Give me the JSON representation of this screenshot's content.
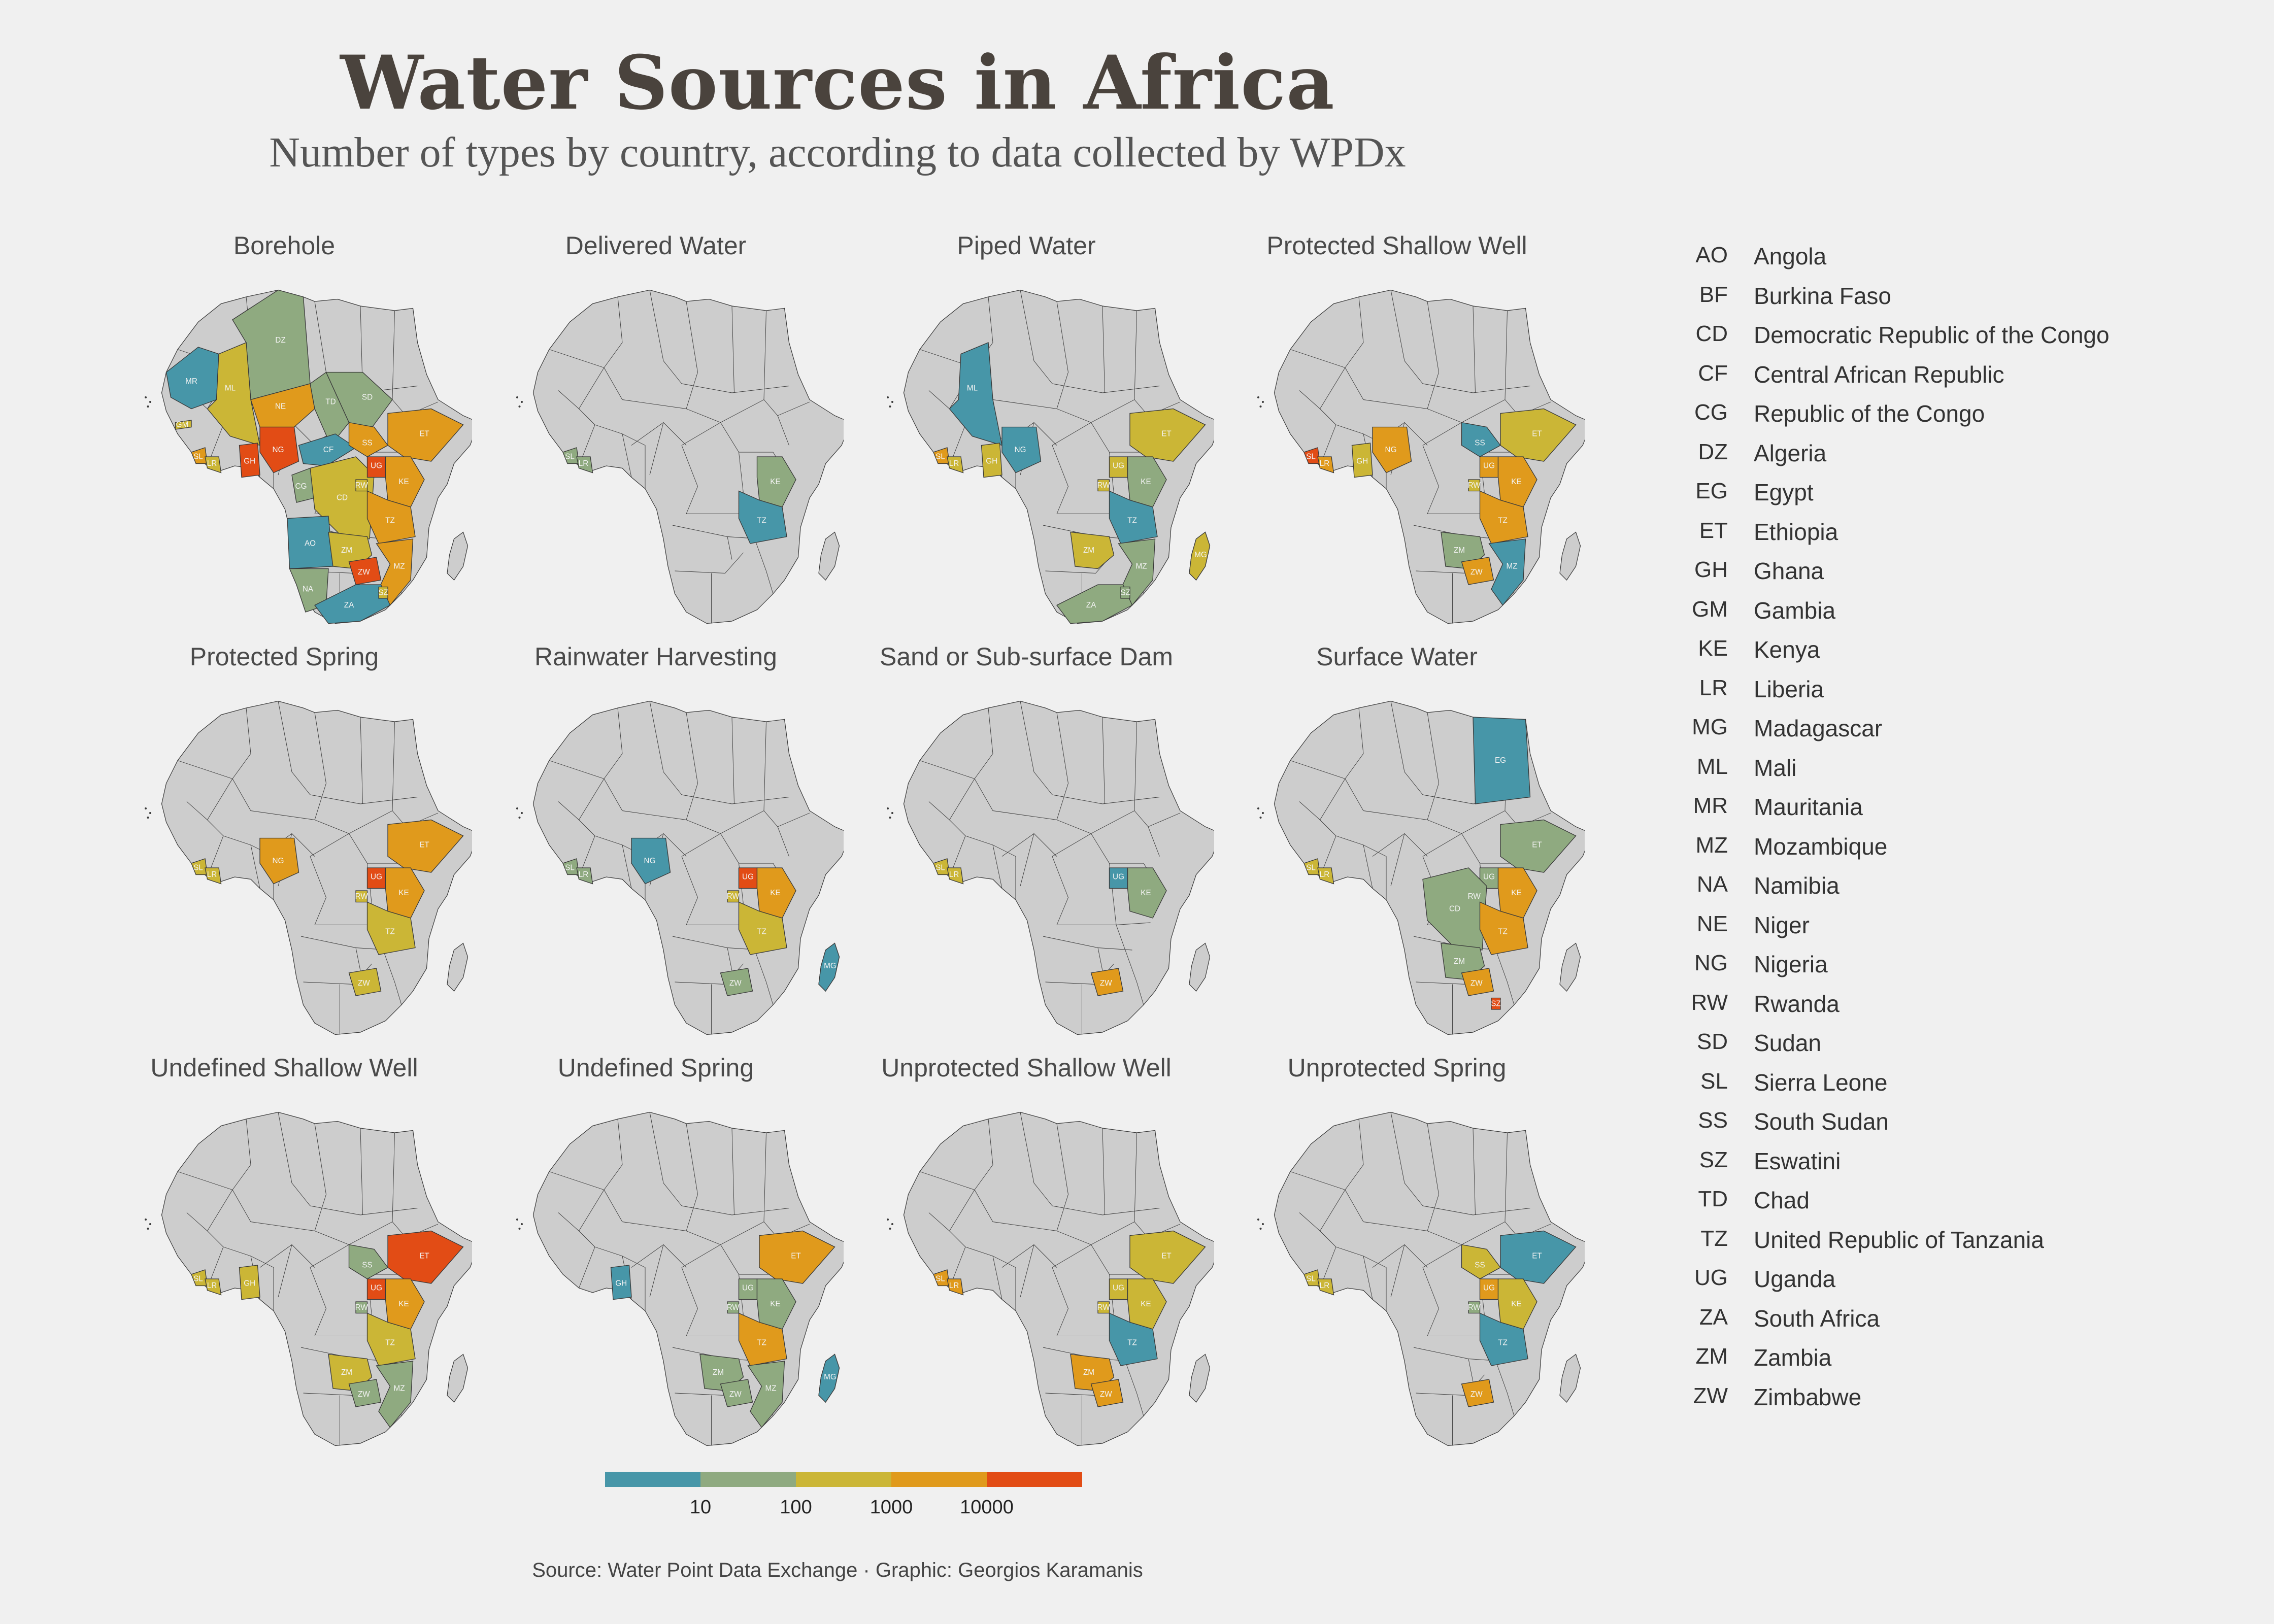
{
  "title": "Water Sources in Africa",
  "subtitle": "Number of types by country, according to data collected by WPDx",
  "caption": "Source: Water Point Data Exchange · Graphic: Georgios Karamanis",
  "colors": {
    "background": "#f0f0f0",
    "land": "#cdcdcd",
    "border": "#3a3a3a",
    "bin1": "#4796a8",
    "bin2": "#8faa80",
    "bin3": "#cbb636",
    "bin4": "#e09a1c",
    "bin5": "#e24c15"
  },
  "scale": {
    "type": "log",
    "bin_colors": [
      "#4796a8",
      "#8faa80",
      "#cbb636",
      "#e09a1c",
      "#e24c15"
    ],
    "tick_labels": [
      "10",
      "100",
      "1000",
      "10000"
    ]
  },
  "chart_data": {
    "type": "choropleth-small-multiples",
    "panels": [
      {
        "name": "Borehole",
        "countries": {
          "DZ": 2,
          "MR": 1,
          "ML": 3,
          "NE": 4,
          "TD": 2,
          "SD": 2,
          "NG": 5,
          "GH": 5,
          "SL": 4,
          "LR": 3,
          "GM": 3,
          "CF": 1,
          "CG": 2,
          "CD": 3,
          "SS": 4,
          "ET": 4,
          "UG": 5,
          "KE": 4,
          "RW": 3,
          "TZ": 4,
          "AO": 1,
          "ZM": 3,
          "MZ": 4,
          "ZW": 5,
          "NA": 2,
          "ZA": 1,
          "SZ": 3
        }
      },
      {
        "name": "Delivered Water",
        "countries": {
          "SL": 2,
          "LR": 2,
          "KE": 2,
          "TZ": 1
        }
      },
      {
        "name": "Piped Water",
        "countries": {
          "ML": 1,
          "NG": 1,
          "GH": 3,
          "SL": 4,
          "LR": 3,
          "ET": 3,
          "UG": 3,
          "RW": 3,
          "KE": 2,
          "TZ": 1,
          "ZM": 3,
          "MZ": 2,
          "MG": 3,
          "ZA": 2,
          "SZ": 2
        }
      },
      {
        "name": "Protected Shallow Well",
        "countries": {
          "SL": 5,
          "LR": 4,
          "GH": 3,
          "NG": 4,
          "SS": 1,
          "ET": 3,
          "UG": 4,
          "RW": 3,
          "KE": 4,
          "TZ": 4,
          "ZM": 2,
          "MZ": 1,
          "ZW": 4
        }
      },
      {
        "name": "Protected Spring",
        "countries": {
          "SL": 3,
          "LR": 3,
          "NG": 4,
          "ET": 4,
          "UG": 5,
          "RW": 3,
          "KE": 4,
          "TZ": 3,
          "ZW": 3
        }
      },
      {
        "name": "Rainwater Harvesting",
        "countries": {
          "SL": 2,
          "LR": 2,
          "NG": 1,
          "UG": 5,
          "RW": 3,
          "KE": 4,
          "TZ": 3,
          "ZW": 2,
          "MG": 1
        }
      },
      {
        "name": "Sand or Sub-surface Dam",
        "countries": {
          "SL": 3,
          "LR": 3,
          "UG": 1,
          "KE": 2,
          "ZW": 4
        }
      },
      {
        "name": "Surface Water",
        "countries": {
          "SL": 3,
          "LR": 3,
          "EG": 1,
          "ET": 2,
          "UG": 2,
          "RW": 2,
          "KE": 4,
          "CD": 2,
          "TZ": 4,
          "ZM": 2,
          "ZW": 4,
          "SZ": 5
        }
      },
      {
        "name": "Undefined Shallow Well",
        "countries": {
          "SL": 3,
          "LR": 3,
          "GH": 3,
          "SS": 2,
          "ET": 5,
          "UG": 5,
          "RW": 2,
          "KE": 4,
          "TZ": 3,
          "ZM": 3,
          "MZ": 2,
          "ZW": 2
        }
      },
      {
        "name": "Undefined Spring",
        "countries": {
          "GH": 1,
          "ET": 4,
          "UG": 2,
          "RW": 2,
          "KE": 2,
          "TZ": 4,
          "ZM": 2,
          "MZ": 2,
          "ZW": 2,
          "MG": 1
        }
      },
      {
        "name": "Unprotected Shallow Well",
        "countries": {
          "SL": 4,
          "LR": 4,
          "ET": 3,
          "UG": 3,
          "RW": 3,
          "KE": 3,
          "TZ": 1,
          "ZM": 4,
          "ZW": 4
        }
      },
      {
        "name": "Unprotected Spring",
        "countries": {
          "SL": 3,
          "LR": 3,
          "SS": 3,
          "ET": 1,
          "UG": 4,
          "RW": 2,
          "KE": 3,
          "TZ": 1,
          "ZW": 4
        }
      }
    ]
  },
  "legend": [
    {
      "code": "AO",
      "name": "Angola"
    },
    {
      "code": "BF",
      "name": "Burkina Faso"
    },
    {
      "code": "CD",
      "name": "Democratic Republic of the Congo"
    },
    {
      "code": "CF",
      "name": "Central African Republic"
    },
    {
      "code": "CG",
      "name": "Republic of the Congo"
    },
    {
      "code": "DZ",
      "name": "Algeria"
    },
    {
      "code": "EG",
      "name": "Egypt"
    },
    {
      "code": "ET",
      "name": "Ethiopia"
    },
    {
      "code": "GH",
      "name": "Ghana"
    },
    {
      "code": "GM",
      "name": "Gambia"
    },
    {
      "code": "KE",
      "name": "Kenya"
    },
    {
      "code": "LR",
      "name": "Liberia"
    },
    {
      "code": "MG",
      "name": "Madagascar"
    },
    {
      "code": "ML",
      "name": "Mali"
    },
    {
      "code": "MR",
      "name": "Mauritania"
    },
    {
      "code": "MZ",
      "name": "Mozambique"
    },
    {
      "code": "NA",
      "name": "Namibia"
    },
    {
      "code": "NE",
      "name": "Niger"
    },
    {
      "code": "NG",
      "name": "Nigeria"
    },
    {
      "code": "RW",
      "name": "Rwanda"
    },
    {
      "code": "SD",
      "name": "Sudan"
    },
    {
      "code": "SL",
      "name": "Sierra Leone"
    },
    {
      "code": "SS",
      "name": "South Sudan"
    },
    {
      "code": "SZ",
      "name": "Eswatini"
    },
    {
      "code": "TD",
      "name": "Chad"
    },
    {
      "code": "TZ",
      "name": "United Republic of Tanzania"
    },
    {
      "code": "UG",
      "name": "Uganda"
    },
    {
      "code": "ZA",
      "name": "South Africa"
    },
    {
      "code": "ZM",
      "name": "Zambia"
    },
    {
      "code": "ZW",
      "name": "Zimbabwe"
    }
  ]
}
